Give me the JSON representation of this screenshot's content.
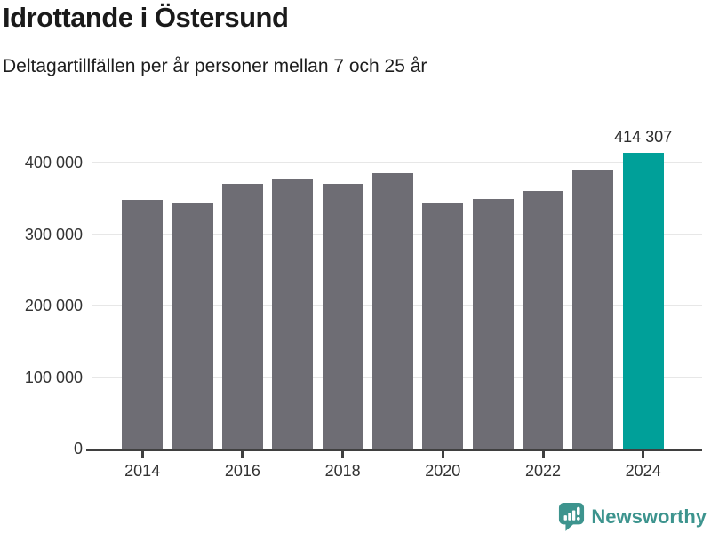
{
  "header": {
    "title": "Idrottande i Östersund",
    "subtitle": "Deltagartillfällen per år personer mellan 7 och 25 år"
  },
  "chart_data": {
    "type": "bar",
    "categories": [
      "2014",
      "2015",
      "2016",
      "2017",
      "2018",
      "2019",
      "2020",
      "2021",
      "2022",
      "2023",
      "2024"
    ],
    "values": [
      348000,
      343000,
      370000,
      378000,
      371000,
      385000,
      343000,
      349000,
      360000,
      391000,
      414307
    ],
    "title": "Idrottande i Östersund",
    "subtitle": "Deltagartillfällen per år personer mellan 7 och 25 år",
    "xlabel": "",
    "ylabel": "",
    "ylim": [
      0,
      450000
    ],
    "grid": true,
    "legend": "none",
    "yticks": [
      {
        "value": 0,
        "label": "0"
      },
      {
        "value": 100000,
        "label": "100 000"
      },
      {
        "value": 200000,
        "label": "200 000"
      },
      {
        "value": 300000,
        "label": "300 000"
      },
      {
        "value": 400000,
        "label": "400 000"
      }
    ],
    "xtick_labels": [
      "2014",
      "2016",
      "2018",
      "2020",
      "2022",
      "2024"
    ],
    "highlight_index": 10,
    "annotation": {
      "bar": "2024",
      "text": "414 307"
    },
    "colors": {
      "bar": "#6e6d74",
      "highlight_bar": "#00a099",
      "gridline": "#e7e7e7",
      "axis": "#3f3f3f",
      "tick_text": "#333333"
    }
  },
  "footer": {
    "brand": "Newsworthy",
    "brand_color": "#3d948e",
    "logo_icon": "bar-chart-speech-bubble-icon"
  }
}
